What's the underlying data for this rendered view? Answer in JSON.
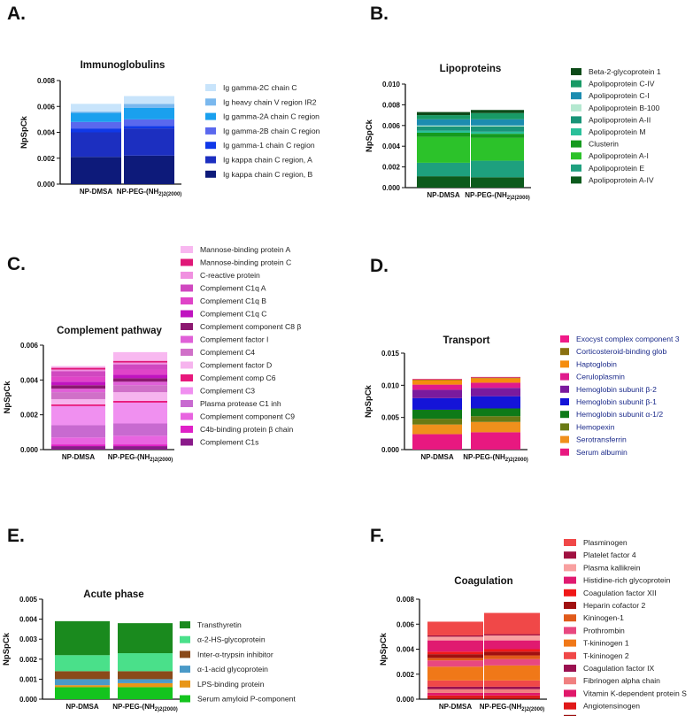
{
  "chart_data": [
    {
      "panel": "A.",
      "type": "stacked_bar",
      "title": "Immunoglobulins",
      "ylabel": "NpSpCk",
      "ylim": [
        0,
        0.008
      ],
      "yticks": [
        "0.000",
        "0.002",
        "0.004",
        "0.006",
        "0.008"
      ],
      "yticks_num": [
        0,
        0.002,
        0.004,
        0.006,
        0.008
      ],
      "categories": [
        {
          "main": "NP-DMSA",
          "sub": ""
        },
        {
          "main": "NP-PEG-(NH",
          "sub": "2)2(2000)"
        }
      ],
      "series": [
        {
          "name": "Ig kappa chain C region, B",
          "color": "#0d1a7a",
          "values": [
            0.0021,
            0.0022
          ]
        },
        {
          "name": "Ig kappa chain C region, A",
          "color": "#1c2fc0",
          "values": [
            0.0019,
            0.0021
          ]
        },
        {
          "name": "Ig gamma-1 chain C region",
          "color": "#1038e8",
          "values": [
            0.0003,
            0.0002
          ]
        },
        {
          "name": "Ig gamma-2B chain C region",
          "color": "#5a68ee",
          "values": [
            0.0005,
            0.0005
          ]
        },
        {
          "name": "Ig gamma-2A chain C region",
          "color": "#1aa0ee",
          "values": [
            0.0007,
            0.0009
          ]
        },
        {
          "name": "Ig heavy chain V region IR2",
          "color": "#7ab8ee",
          "values": [
            0.0001,
            0.0003
          ]
        },
        {
          "name": "Ig gamma-2C chain C",
          "color": "#c8e4fb",
          "values": [
            0.0006,
            0.0006
          ]
        }
      ]
    },
    {
      "panel": "B.",
      "type": "stacked_bar",
      "title": "Lipoproteins",
      "ylabel": "NpSpCk",
      "ylim": [
        0,
        0.01
      ],
      "yticks": [
        "0.000",
        "0.002",
        "0.004",
        "0.006",
        "0.008",
        "0.010"
      ],
      "yticks_num": [
        0,
        0.002,
        0.004,
        0.006,
        0.008,
        0.01
      ],
      "categories": [
        {
          "main": "NP-DMSA",
          "sub": ""
        },
        {
          "main": "NP-PEG-(NH",
          "sub": "2)2(2000)"
        }
      ],
      "series": [
        {
          "name": "Apolipoprotein A-IV",
          "color": "#0c5a1c",
          "values": [
            0.0011,
            0.001
          ]
        },
        {
          "name": "Apolipoprotein E",
          "color": "#1ea07e",
          "values": [
            0.0013,
            0.0016
          ]
        },
        {
          "name": "Apolipoprotein A-I",
          "color": "#2cc22a",
          "values": [
            0.0025,
            0.0022
          ]
        },
        {
          "name": "Clusterin",
          "color": "#159a1e",
          "values": [
            0.0004,
            0.0004
          ]
        },
        {
          "name": "Apolipoprotein M",
          "color": "#2ac09a",
          "values": [
            0.0002,
            0.0002
          ]
        },
        {
          "name": "Apolipoprotein A-II",
          "color": "#199478",
          "values": [
            0.0004,
            0.0005
          ]
        },
        {
          "name": "Apolipoprotein B-100",
          "color": "#b4e8d0",
          "values": [
            0.0001,
            0.0001
          ]
        },
        {
          "name": "Apolipoprotein C-I",
          "color": "#1c8cb0",
          "values": [
            0.0006,
            0.0006
          ]
        },
        {
          "name": "Apolipoprotein C-IV",
          "color": "#189a66",
          "values": [
            0.0004,
            0.0006
          ]
        },
        {
          "name": "Beta-2-glycoprotein 1",
          "color": "#0c4a18",
          "values": [
            0.0003,
            0.0003
          ]
        }
      ]
    },
    {
      "panel": "C.",
      "type": "stacked_bar",
      "title": "Complement pathway",
      "ylabel": "NpSpCk",
      "ylim": [
        0,
        0.006
      ],
      "yticks": [
        "0.000",
        "0.002",
        "0.004",
        "0.006"
      ],
      "yticks_num": [
        0,
        0.002,
        0.004,
        0.006
      ],
      "categories": [
        {
          "main": "NP-DMSA",
          "sub": ""
        },
        {
          "main": "NP-PEG-(NH",
          "sub": "2)2(2000)"
        }
      ],
      "series": [
        {
          "name": "Complement C1s",
          "color": "#8a1a8a",
          "values": [
            0.0002,
            0.0002
          ]
        },
        {
          "name": "C4b-binding protein β chain",
          "color": "#e020c8",
          "values": [
            0.0001,
            0.0001
          ]
        },
        {
          "name": "Complement component C9",
          "color": "#e864e0",
          "values": [
            0.0004,
            0.0005
          ]
        },
        {
          "name": "Plasma protease C1 inh",
          "color": "#c86ad0",
          "values": [
            0.0007,
            0.0007
          ]
        },
        {
          "name": "Complement C3",
          "color": "#f090f0",
          "values": [
            0.0011,
            0.0012
          ]
        },
        {
          "name": "Complement comp C6",
          "color": "#e8187c",
          "values": [
            0.0001,
            0.0001
          ]
        },
        {
          "name": "Complement factor D",
          "color": "#f6b4ee",
          "values": [
            0.0003,
            0.0005
          ]
        },
        {
          "name": "Complement C4",
          "color": "#d070c8",
          "values": [
            0.0004,
            0.0004
          ]
        },
        {
          "name": "Complement factor I",
          "color": "#e060d8",
          "values": [
            0.0002,
            0.0002
          ]
        },
        {
          "name": "Complement component C8 β",
          "color": "#8c1870",
          "values": [
            0.0002,
            0.0002
          ]
        },
        {
          "name": "Complement C1q C",
          "color": "#c014c0",
          "values": [
            0.0002,
            0.0002
          ]
        },
        {
          "name": "Complement C1q B",
          "color": "#e044c8",
          "values": [
            0.0003,
            0.0003
          ]
        },
        {
          "name": "Complement C1q A",
          "color": "#d048c0",
          "values": [
            0.0003,
            0.0003
          ]
        },
        {
          "name": "C-reactive protein",
          "color": "#f090e0",
          "values": [
            0.0001,
            0.0001
          ]
        },
        {
          "name": "Mannose-binding protein C",
          "color": "#e01878",
          "values": [
            0.0001,
            0.0001
          ]
        },
        {
          "name": "Mannose-binding protein A",
          "color": "#f8b8f0",
          "values": [
            0.0001,
            0.0005
          ]
        }
      ]
    },
    {
      "panel": "D.",
      "type": "stacked_bar",
      "title": "Transport",
      "ylabel": "NpSpCk",
      "ylim": [
        0,
        0.015
      ],
      "yticks": [
        "0.000",
        "0.005",
        "0.010",
        "0.015"
      ],
      "yticks_num": [
        0,
        0.005,
        0.01,
        0.015
      ],
      "categories": [
        {
          "main": "NP-DMSA",
          "sub": ""
        },
        {
          "main": "NP-PEG-(NH",
          "sub": "2)2(2000)"
        }
      ],
      "series": [
        {
          "name": "Serum albumin",
          "color": "#e81880",
          "values": [
            0.0024,
            0.0027
          ]
        },
        {
          "name": "Serotransferrin",
          "color": "#f0901c",
          "values": [
            0.0015,
            0.0016
          ]
        },
        {
          "name": "Hemopexin",
          "color": "#6a7a14",
          "values": [
            0.0009,
            0.0009
          ]
        },
        {
          "name": "Hemoglobin subunit α-1/2",
          "color": "#0e7a18",
          "values": [
            0.0014,
            0.0012
          ]
        },
        {
          "name": "Hemoglobin subunit β-1",
          "color": "#1414d8",
          "values": [
            0.0018,
            0.0019
          ]
        },
        {
          "name": "Hemoglobin subunit β-2",
          "color": "#7a1a9e",
          "values": [
            0.0013,
            0.0013
          ]
        },
        {
          "name": "Ceruloplasmin",
          "color": "#e01a8c",
          "values": [
            0.0008,
            0.0008
          ]
        },
        {
          "name": "Haptoglobin",
          "color": "#f58c0e",
          "values": [
            0.0007,
            0.0007
          ]
        },
        {
          "name": "Corticosteroid-binding glob",
          "color": "#8a7010",
          "values": [
            0.0001,
            0.0001
          ]
        },
        {
          "name": "Exocyst complex component 3",
          "color": "#f01a88",
          "values": [
            0.0001,
            0.0001
          ]
        }
      ]
    },
    {
      "panel": "E.",
      "type": "stacked_bar",
      "title": "Acute phase",
      "ylabel": "NpSpCk",
      "ylim": [
        0,
        0.005
      ],
      "yticks": [
        "0.000",
        "0.001",
        "0.002",
        "0.003",
        "0.004",
        "0.005"
      ],
      "yticks_num": [
        0,
        0.001,
        0.002,
        0.003,
        0.004,
        0.005
      ],
      "categories": [
        {
          "main": "NP-DMSA",
          "sub": ""
        },
        {
          "main": "NP-PEG-(NH",
          "sub": "2)2(2000)"
        }
      ],
      "series": [
        {
          "name": "Serum amyloid P-component",
          "color": "#14c41e",
          "values": [
            0.0006,
            0.0006
          ]
        },
        {
          "name": "LPS-binding protein",
          "color": "#e89618",
          "values": [
            0.0001,
            0.0002
          ]
        },
        {
          "name": "α-1-acid glycoprotein",
          "color": "#4a9ac8",
          "values": [
            0.0003,
            0.0002
          ]
        },
        {
          "name": "Inter-α-trypsin inhibitor",
          "color": "#8a4a1a",
          "values": [
            0.0004,
            0.0004
          ]
        },
        {
          "name": "α-2-HS-glycoprotein",
          "color": "#4ae08a",
          "values": [
            0.0008,
            0.0009
          ]
        },
        {
          "name": "Transthyretin",
          "color": "#1a8a1e",
          "values": [
            0.0017,
            0.0015
          ]
        }
      ]
    },
    {
      "panel": "F.",
      "type": "stacked_bar",
      "title": "Coagulation",
      "ylabel": "NpSpCk",
      "ylim": [
        0,
        0.008
      ],
      "yticks": [
        "0.000",
        "0.002",
        "0.004",
        "0.006",
        "0.008"
      ],
      "yticks_num": [
        0,
        0.002,
        0.004,
        0.006,
        0.008
      ],
      "categories": [
        {
          "main": "NP-DMSA",
          "sub": ""
        },
        {
          "main": "NP-PEG-(NH",
          "sub": "2)2(2000)"
        }
      ],
      "series": [
        {
          "name": "Coagulation factor X",
          "color": "#9a0a0a",
          "values": [
            0.0001,
            0.0001
          ]
        },
        {
          "name": "Angiotensinogen",
          "color": "#e01818",
          "values": [
            0.0002,
            0.0002
          ]
        },
        {
          "name": "Vitamin K-dependent protein S",
          "color": "#e0186a",
          "values": [
            0.0002,
            0.0002
          ]
        },
        {
          "name": "Fibrinogen alpha chain",
          "color": "#f08080",
          "values": [
            0.0003,
            0.0003
          ]
        },
        {
          "name": "Coagulation factor IX",
          "color": "#9a1050",
          "values": [
            0.0002,
            0.0002
          ]
        },
        {
          "name": "T-kininogen 2",
          "color": "#f04848",
          "values": [
            0.0005,
            0.0005
          ]
        },
        {
          "name": "T-kininogen 1",
          "color": "#f07818",
          "values": [
            0.0011,
            0.0012
          ]
        },
        {
          "name": "Prothrombin",
          "color": "#e84880",
          "values": [
            0.0005,
            0.0005
          ]
        },
        {
          "name": "Kininogen-1",
          "color": "#e05a1a",
          "values": [
            0.0002,
            0.0003
          ]
        },
        {
          "name": "Heparin cofactor 2",
          "color": "#a01010",
          "values": [
            0.0003,
            0.0003
          ]
        },
        {
          "name": "Coagulation factor XII",
          "color": "#f01818",
          "values": [
            0.0002,
            0.0002
          ]
        },
        {
          "name": "Histidine-rich glycoprotein",
          "color": "#e01a70",
          "values": [
            0.0009,
            0.0007
          ]
        },
        {
          "name": "Plasma kallikrein",
          "color": "#f8a0a0",
          "values": [
            0.0003,
            0.0004
          ]
        },
        {
          "name": "Platelet factor 4",
          "color": "#a01040",
          "values": [
            0.0001,
            0.0001
          ]
        },
        {
          "name": "Plasminogen",
          "color": "#f04848",
          "values": [
            0.0011,
            0.0017
          ]
        }
      ]
    }
  ]
}
